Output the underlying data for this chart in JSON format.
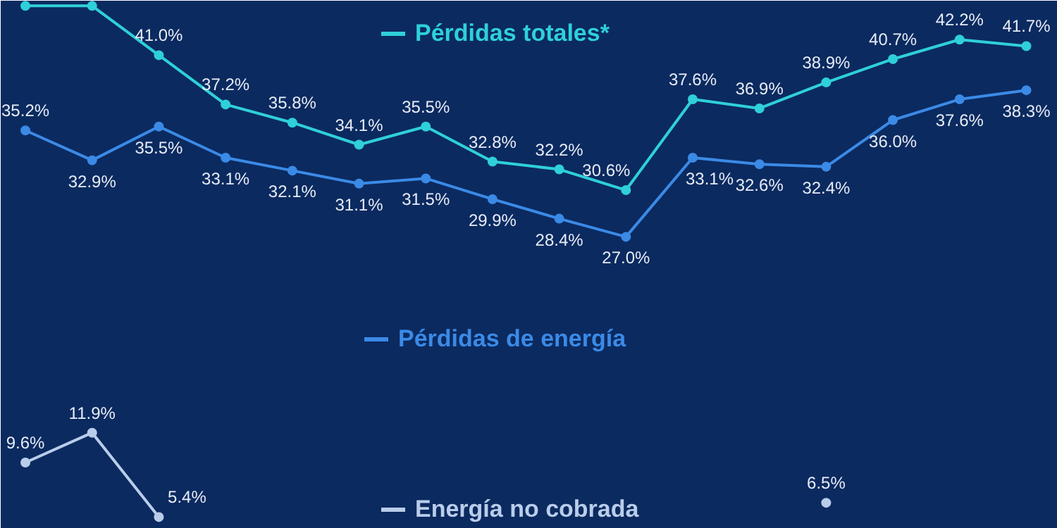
{
  "chart_data": {
    "type": "line",
    "categories": [
      null,
      null,
      null,
      null,
      null,
      null,
      null,
      null,
      null,
      null,
      null,
      null,
      null,
      null,
      null,
      null
    ],
    "ylim": [
      4.5,
      45.2
    ],
    "tick_labels": false,
    "grid": false,
    "marker": "circle",
    "line_style": "solid",
    "legend": "center",
    "series": [
      {
        "name": "Pérdidas totales*",
        "color": "#2fd0d8",
        "values": [
          44.8,
          44.8,
          41.0,
          37.2,
          35.8,
          34.1,
          35.5,
          32.8,
          32.2,
          30.6,
          37.6,
          36.9,
          38.9,
          40.7,
          42.2,
          41.7
        ],
        "value_labels": [
          null,
          null,
          "41.0%",
          "37.2%",
          "35.8%",
          "34.1%",
          "35.5%",
          "32.8%",
          "32.2%",
          "30.6%",
          "37.6%",
          "36.9%",
          "38.9%",
          "40.7%",
          "42.2%",
          "41.7%"
        ]
      },
      {
        "name": "Pérdidas de energía",
        "color": "#3b8ae6",
        "values": [
          35.2,
          32.9,
          35.5,
          33.1,
          32.1,
          31.1,
          31.5,
          29.9,
          28.4,
          27.0,
          33.1,
          32.6,
          32.4,
          36.0,
          37.6,
          38.3
        ],
        "value_labels": [
          "35.2%",
          "32.9%",
          "35.5%",
          "33.1%",
          "32.1%",
          "31.1%",
          "31.5%",
          "29.9%",
          "28.4%",
          "27.0%",
          "33.1%",
          "32.6%",
          "32.4%",
          "36.0%",
          "37.6%",
          "38.3%"
        ]
      },
      {
        "name": "Energía no cobrada",
        "color": "#b9cdea",
        "values": [
          9.6,
          11.9,
          5.4,
          null,
          null,
          null,
          null,
          null,
          null,
          null,
          null,
          null,
          6.5,
          null,
          null,
          null
        ],
        "value_labels": [
          "9.6%",
          "11.9%",
          "5.4%",
          null,
          null,
          null,
          null,
          null,
          null,
          null,
          null,
          null,
          "6.5%",
          null,
          null,
          null
        ]
      }
    ]
  }
}
